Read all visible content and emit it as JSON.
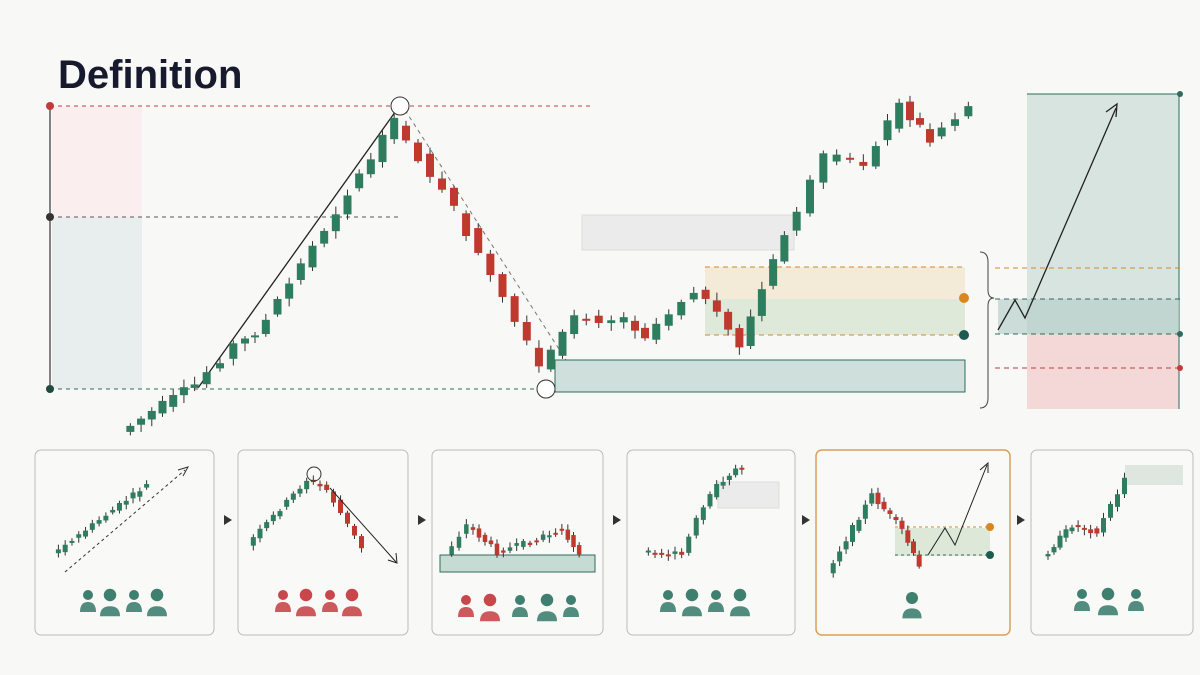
{
  "header": {
    "title": "Definition"
  }
}
